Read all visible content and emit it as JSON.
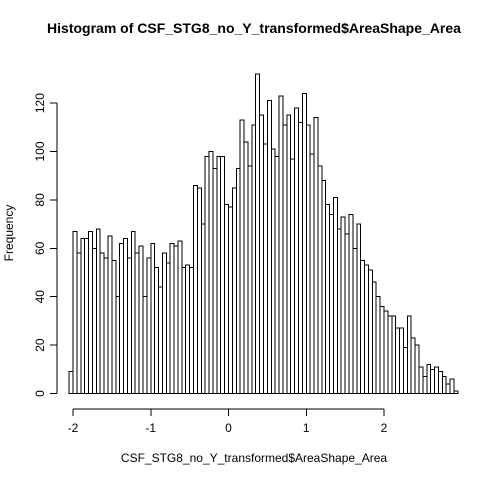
{
  "chart_data": {
    "type": "bar",
    "title": "Histogram of CSF_STG8_no_Y_transformed$AreaShape_Area",
    "xlabel": "CSF_STG8_no_Y_transformed$AreaShape_Area",
    "ylabel": "Frequency",
    "bin_width": 0.05,
    "bins_start": -2.05,
    "xlim": [
      -2.05,
      2.65
    ],
    "ylim": [
      0,
      132
    ],
    "x_ticks": [
      -2,
      -1,
      0,
      1,
      2
    ],
    "y_ticks": [
      0,
      20,
      40,
      60,
      80,
      100,
      120
    ],
    "values": [
      9,
      67,
      58,
      64,
      64,
      67,
      60,
      68,
      58,
      56,
      65,
      55,
      40,
      62,
      64,
      56,
      67,
      58,
      61,
      40,
      56,
      62,
      52,
      44,
      58,
      54,
      62,
      61,
      63,
      52,
      53,
      52,
      86,
      85,
      70,
      98,
      100,
      93,
      98,
      98,
      78,
      77,
      85,
      93,
      113,
      104,
      94,
      111,
      132,
      115,
      103,
      121,
      101,
      98,
      123,
      111,
      115,
      97,
      118,
      112,
      124,
      111,
      99,
      114,
      94,
      88,
      78,
      74,
      81,
      68,
      73,
      66,
      74,
      60,
      70,
      55,
      53,
      51,
      46,
      40,
      36,
      34,
      32,
      32,
      27,
      27,
      19,
      32,
      23,
      20,
      11,
      7,
      12,
      10,
      11,
      9,
      7,
      4,
      6,
      1
    ]
  }
}
